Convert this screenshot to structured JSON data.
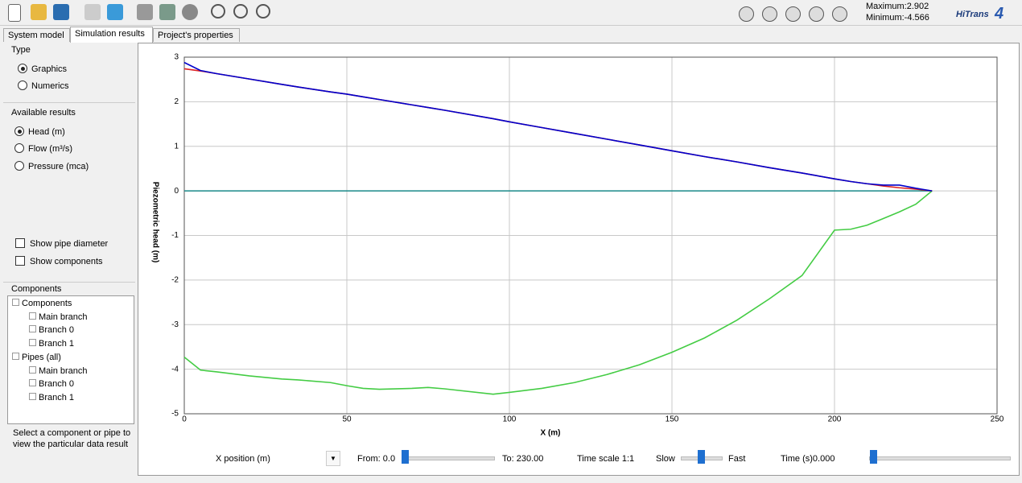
{
  "toolbar": {
    "maximum": "Maximum:2.902",
    "minimum": "Minimum:-4.566",
    "logo": "HiTrans",
    "logo_version": "4"
  },
  "tabs": [
    "System model",
    "Simulation results",
    "Project's properties"
  ],
  "left_panel": {
    "type_title": "Type",
    "type_options": [
      "Graphics",
      "Numerics"
    ],
    "results_title": "Available results",
    "results_options": [
      "Head (m)",
      "Flow (m³/s)",
      "Pressure (mca)"
    ],
    "checkboxes": [
      "Show pipe diameter",
      "Show components"
    ],
    "components_title": "Components",
    "tree": [
      {
        "label": "Components",
        "children": [
          "Main branch",
          "Branch 0",
          "Branch 1"
        ]
      },
      {
        "label": "Pipes (all)",
        "children": [
          "Main branch",
          "Branch 0",
          "Branch 1"
        ]
      }
    ],
    "hint": "Select a component or pipe to view the particular data result"
  },
  "controls": {
    "x_position": "X position (m)",
    "from": "From: 0.0",
    "to": "To: 230.00",
    "time_scale": "Time scale 1:1",
    "slow": "Slow",
    "fast": "Fast",
    "time": "Time (s)0.000"
  },
  "chart_data": {
    "type": "line",
    "x_label": "X (m)",
    "y_label": "Piezometric head (m)",
    "x": [
      0,
      5,
      10,
      20,
      30,
      35,
      45,
      50,
      55,
      60,
      70,
      75,
      80,
      95,
      100,
      110,
      120,
      130,
      140,
      150,
      160,
      170,
      180,
      190,
      200,
      205,
      210,
      215,
      220,
      225,
      230
    ],
    "series": [
      {
        "color": "#0000cc",
        "values": [
          2.88,
          2.7,
          2.63,
          2.51,
          2.39,
          2.33,
          2.22,
          2.17,
          2.11,
          2.05,
          1.93,
          1.87,
          1.81,
          1.62,
          1.55,
          1.42,
          1.29,
          1.16,
          1.03,
          0.9,
          0.77,
          0.65,
          0.52,
          0.4,
          0.27,
          0.21,
          0.16,
          0.13,
          0.13,
          0.06,
          0
        ]
      },
      {
        "color": "#dd2222",
        "values": [
          2.74,
          2.69,
          2.63,
          2.51,
          2.39,
          2.33,
          2.22,
          2.17,
          2.11,
          2.05,
          1.93,
          1.87,
          1.81,
          1.62,
          1.55,
          1.42,
          1.29,
          1.16,
          1.03,
          0.9,
          0.77,
          0.65,
          0.52,
          0.4,
          0.27,
          0.21,
          0.16,
          0.11,
          0.07,
          0.04,
          0
        ]
      },
      {
        "color": "#44cc44",
        "values": [
          -3.73,
          -4.02,
          -4.06,
          -4.15,
          -4.22,
          -4.24,
          -4.3,
          -4.37,
          -4.43,
          -4.45,
          -4.43,
          -4.41,
          -4.44,
          -4.56,
          -4.52,
          -4.43,
          -4.3,
          -4.12,
          -3.9,
          -3.62,
          -3.3,
          -2.9,
          -2.42,
          -1.9,
          -0.88,
          -0.86,
          -0.77,
          -0.62,
          -0.47,
          -0.3,
          0
        ]
      },
      {
        "color": "#1a8a8a",
        "values": [
          0,
          0,
          0,
          0,
          0,
          0,
          0,
          0,
          0,
          0,
          0,
          0,
          0,
          0,
          0,
          0,
          0,
          0,
          0,
          0,
          0,
          0,
          0,
          0,
          0,
          0,
          0,
          0,
          0,
          0,
          0
        ]
      }
    ],
    "xlim": [
      0,
      250
    ],
    "ylim": [
      -5,
      3
    ],
    "xticks": [
      0,
      50,
      100,
      150,
      200,
      250
    ],
    "yticks": [
      -5,
      -4,
      -3,
      -2,
      -1,
      0,
      1,
      2,
      3
    ],
    "grid": true
  }
}
